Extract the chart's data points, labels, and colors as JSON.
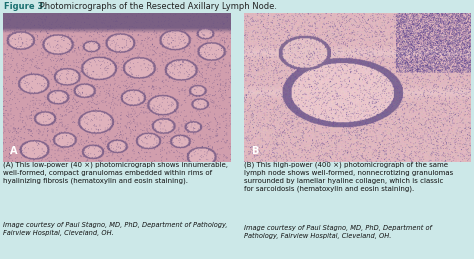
{
  "background_color": "#cce8e8",
  "title_bold": "Figure 3.",
  "title_text": " Photomicrographs of the Resected Axillary Lymph Node.",
  "title_color": "#1a7070",
  "title_fontsize": 6.0,
  "label_A": "A",
  "label_B": "B",
  "label_color": "white",
  "label_fontsize": 7,
  "caption_A": "(A) This low-power (40 ×) photomicrograph shows innumerable,\nwell-formed, compact granulomas embedded within rims of\nhyalinizing fibrosis (hematoxylin and eosin staining).",
  "caption_B": "(B) This high-power (400 ×) photomicrograph of the same\nlymph node shows well-formed, nonnecrotizing granulomas\nsurrounded by lamellar hyaline collagen, which is classic\nfor sarcoidosis (hematoxylin and eosin staining).",
  "credit_A": "Image courtesy of Paul Stagno, MD, PhD, Department of Pathology,\nFairview Hospital, Cleveland, OH.",
  "credit_B": "Image courtesy of Paul Stagno, MD, PhD, Department of\nPathology, Fairview Hospital, Cleveland, OH.",
  "caption_fontsize": 5.0,
  "credit_fontsize": 4.8,
  "caption_color": "#111111",
  "credit_color": "#111111"
}
